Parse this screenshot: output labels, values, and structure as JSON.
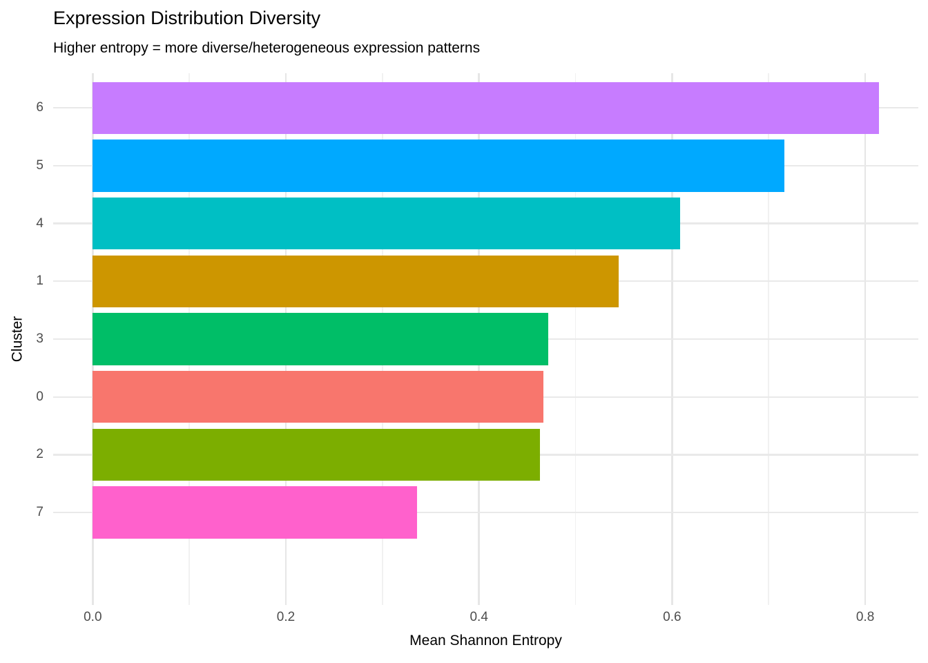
{
  "title": "Expression Distribution Diversity",
  "subtitle": "Higher entropy = more diverse/heterogeneous expression patterns",
  "chart_data": {
    "type": "bar",
    "orientation": "horizontal",
    "title": "Expression Distribution Diversity",
    "subtitle": "Higher entropy = more diverse/heterogeneous expression patterns",
    "xlabel": "Mean Shannon Entropy",
    "ylabel": "Cluster",
    "categories": [
      "6",
      "5",
      "4",
      "1",
      "3",
      "0",
      "2",
      "7"
    ],
    "values": [
      0.814,
      0.716,
      0.608,
      0.545,
      0.472,
      0.467,
      0.463,
      0.336
    ],
    "bar_colors": [
      "#C77CFF",
      "#00A9FF",
      "#00BFC4",
      "#CD9600",
      "#00BE67",
      "#F8766D",
      "#7CAE00",
      "#FF61CC"
    ],
    "x_major_ticks": [
      0.0,
      0.2,
      0.4,
      0.6,
      0.8
    ],
    "x_tick_labels": [
      "0.0",
      "0.2",
      "0.4",
      "0.6",
      "0.8"
    ],
    "x_minor_ticks": [
      0.1,
      0.3,
      0.5,
      0.7
    ],
    "xlim": [
      -0.041,
      0.855
    ],
    "bar_width_fraction": 0.9,
    "grid": true,
    "legend": false,
    "colors": {
      "background": "#FFFFFF",
      "grid_major": "#E6E6E6",
      "grid_minor": "#F1F1F1",
      "tick_label": "#4D4D4D",
      "title": "#000000",
      "axis_title": "#000000"
    }
  }
}
